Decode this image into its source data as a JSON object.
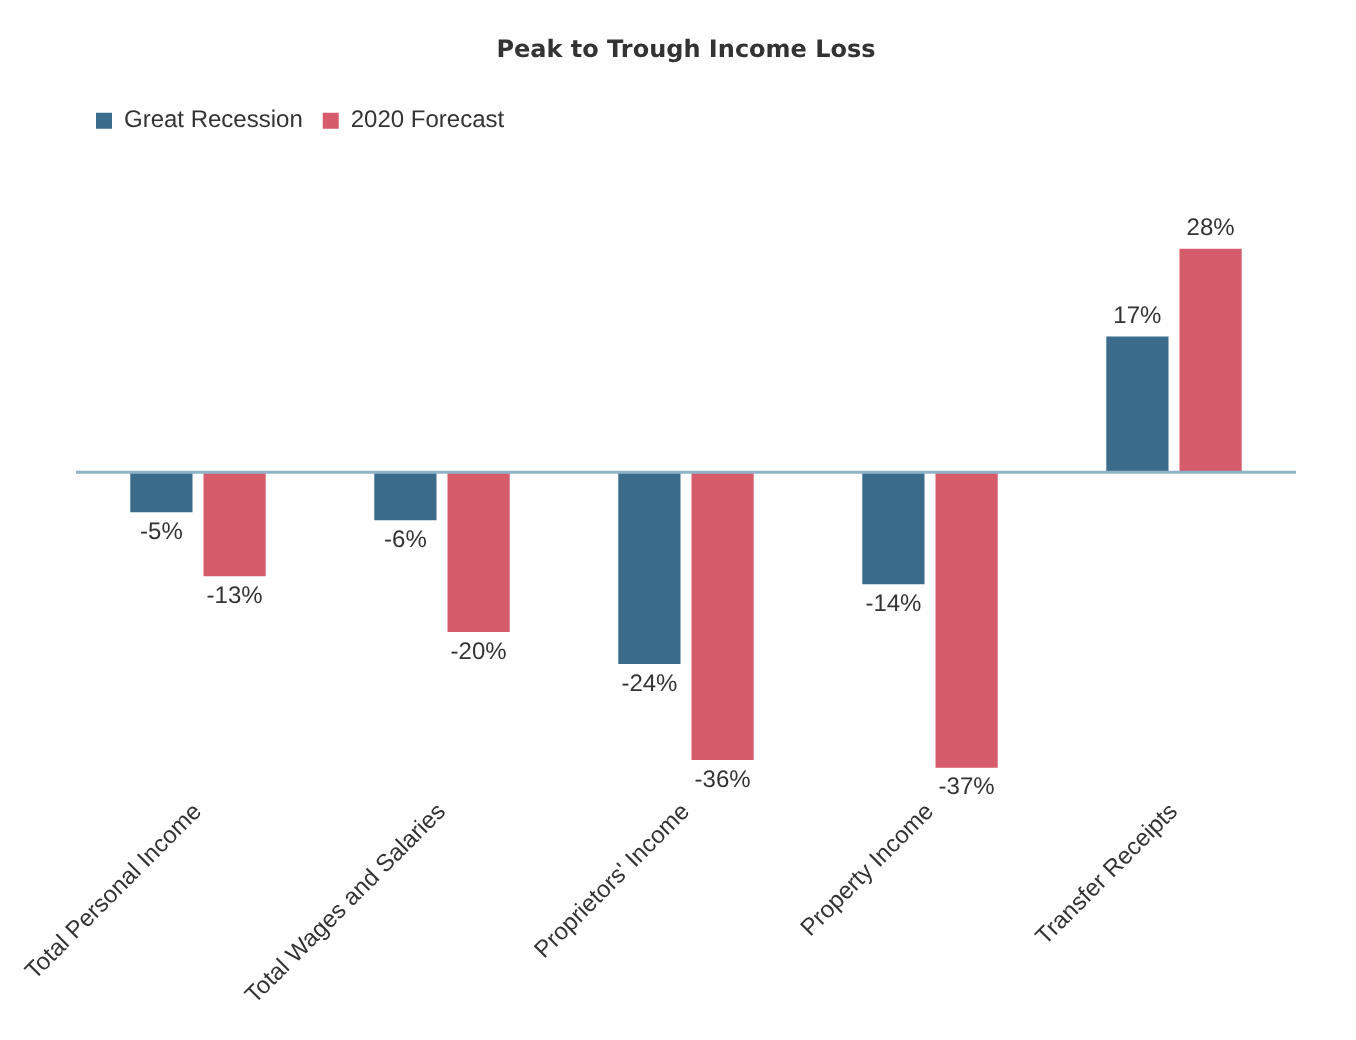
{
  "chart_data": {
    "type": "bar",
    "title": "Peak to Trough Income Loss",
    "categories": [
      "Total Personal Income",
      "Total Wages and Salaries",
      "Proprietors' Income",
      "Property Income",
      "Transfer Receipts"
    ],
    "series": [
      {
        "name": "Great Recession",
        "color": "#3b6c8c",
        "values": [
          -5,
          -6,
          -24,
          -14,
          17
        ],
        "value_labels": [
          "-5%",
          "-6%",
          "-24%",
          "-14%",
          "17%"
        ]
      },
      {
        "name": "2020 Forecast",
        "color": "#d65b6b",
        "values": [
          -13,
          -20,
          -36,
          -37,
          28
        ],
        "value_labels": [
          "-13%",
          "-20%",
          "-36%",
          "-37%",
          "28%"
        ]
      }
    ],
    "ref_lines": [
      {
        "axis": "y",
        "value": 0,
        "color": "#8fb3c8"
      }
    ],
    "legend": "top left",
    "grid": false,
    "tick_labels": "x"
  }
}
